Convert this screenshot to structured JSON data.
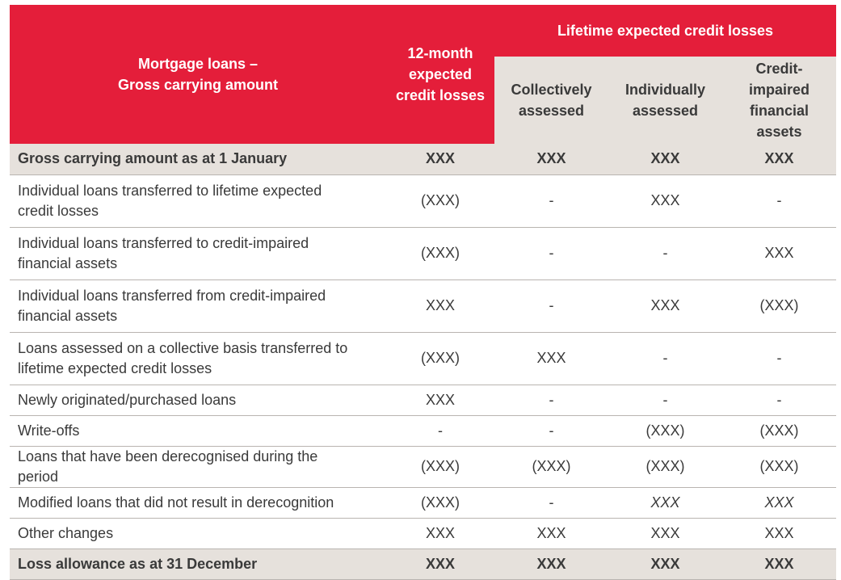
{
  "header": {
    "title": "Mortgage loans –\nGross carrying amount",
    "twelve_month": "12-month expected credit losses",
    "lifetime": "Lifetime expected credit losses",
    "sub_columns": [
      "Collectively assessed",
      "Individually assessed",
      "Credit-impaired financial assets"
    ]
  },
  "table": {
    "rows": [
      [
        "Gross carrying amount as at 1 January",
        "XXX",
        "XXX",
        "XXX",
        "XXX"
      ],
      [
        "Individual loans transferred to lifetime expected credit losses",
        "(XXX)",
        "-",
        "XXX",
        "-"
      ],
      [
        "Individual loans transferred to credit-impaired financial assets",
        "(XXX)",
        "-",
        "-",
        "XXX"
      ],
      [
        "Individual loans transferred from credit-impaired financial assets",
        "XXX",
        "-",
        "XXX",
        "(XXX)"
      ],
      [
        "Loans assessed on a collective basis transferred to lifetime expected credit losses",
        "(XXX)",
        "XXX",
        "-",
        "-"
      ],
      [
        "Newly originated/purchased loans",
        "XXX",
        "-",
        "-",
        "-"
      ],
      [
        "Write-offs",
        "-",
        "-",
        "(XXX)",
        "(XXX)"
      ],
      [
        "Loans that have been derecognised during the period",
        "(XXX)",
        "(XXX)",
        "(XXX)",
        "(XXX)"
      ],
      [
        "Modified loans that did not result in derecognition",
        "(XXX)",
        "-",
        "XXX",
        "XXX"
      ],
      [
        "Other changes",
        "XXX",
        "XXX",
        "XXX",
        "XXX"
      ],
      [
        "Loss allowance as at 31 December",
        "XXX",
        "XXX",
        "XXX",
        "XXX"
      ]
    ]
  }
}
